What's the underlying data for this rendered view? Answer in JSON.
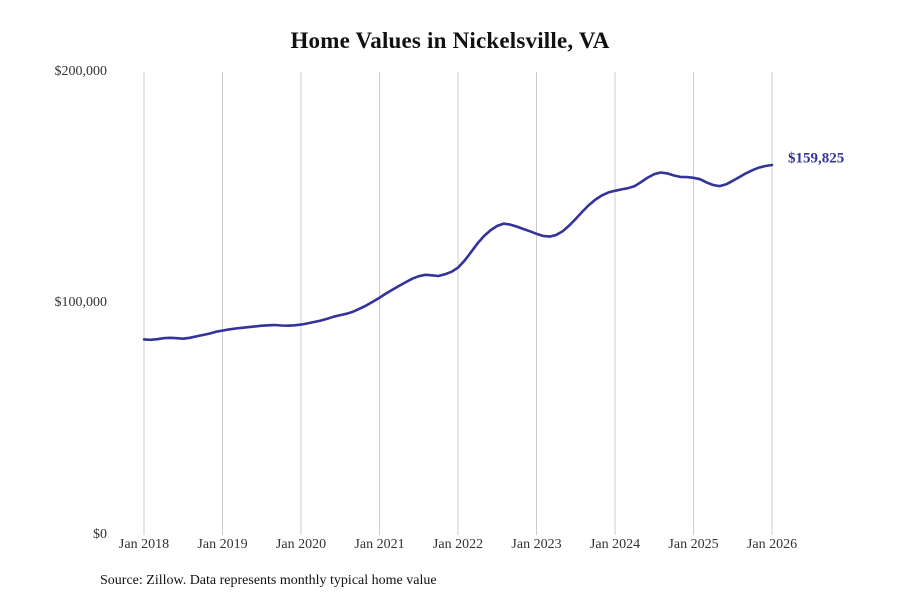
{
  "title": "Home Values in Nickelsville, VA",
  "source_note": "Source: Zillow. Data represents monthly typical home value",
  "chart_data": {
    "type": "line",
    "title": "Home Values in Nickelsville, VA",
    "x_start": "Jan 2018",
    "x_step": "1 month",
    "x_tick_labels": [
      "Jan 2018",
      "Jan 2019",
      "Jan 2020",
      "Jan 2021",
      "Jan 2022",
      "Jan 2023",
      "Jan 2024",
      "Jan 2025",
      "Jan 2026"
    ],
    "y_tick_labels": [
      "$200,000",
      "$100,000",
      "$0"
    ],
    "y_tick_values": [
      200000,
      100000,
      0
    ],
    "ylim": [
      0,
      200000
    ],
    "grid": "vertical-only",
    "legend": "none",
    "end_label": "$159,825",
    "final_value": 159825,
    "line_color": "#333399",
    "grid_color": "#cccccc",
    "values": [
      84500,
      84300,
      84600,
      85000,
      85200,
      85000,
      84800,
      85200,
      85800,
      86400,
      87000,
      87800,
      88300,
      88800,
      89200,
      89500,
      89800,
      90100,
      90400,
      90600,
      90700,
      90500,
      90400,
      90600,
      90900,
      91400,
      92000,
      92600,
      93400,
      94300,
      95000,
      95600,
      96500,
      97800,
      99200,
      100800,
      102500,
      104300,
      106000,
      107600,
      109200,
      110700,
      111800,
      112400,
      112200,
      111900,
      112600,
      113700,
      115500,
      118500,
      122200,
      126000,
      129200,
      131700,
      133500,
      134500,
      134100,
      133200,
      132200,
      131200,
      130100,
      129200,
      128900,
      129600,
      131200,
      133700,
      136600,
      139600,
      142500,
      144900,
      146700,
      148000,
      148700,
      149300,
      149800,
      150700,
      152500,
      154400,
      155900,
      156600,
      156200,
      155300,
      154700,
      154600,
      154300,
      153700,
      152300,
      151200,
      150700,
      151500,
      153000,
      154600,
      156200,
      157600,
      158700,
      159400,
      159825
    ]
  }
}
